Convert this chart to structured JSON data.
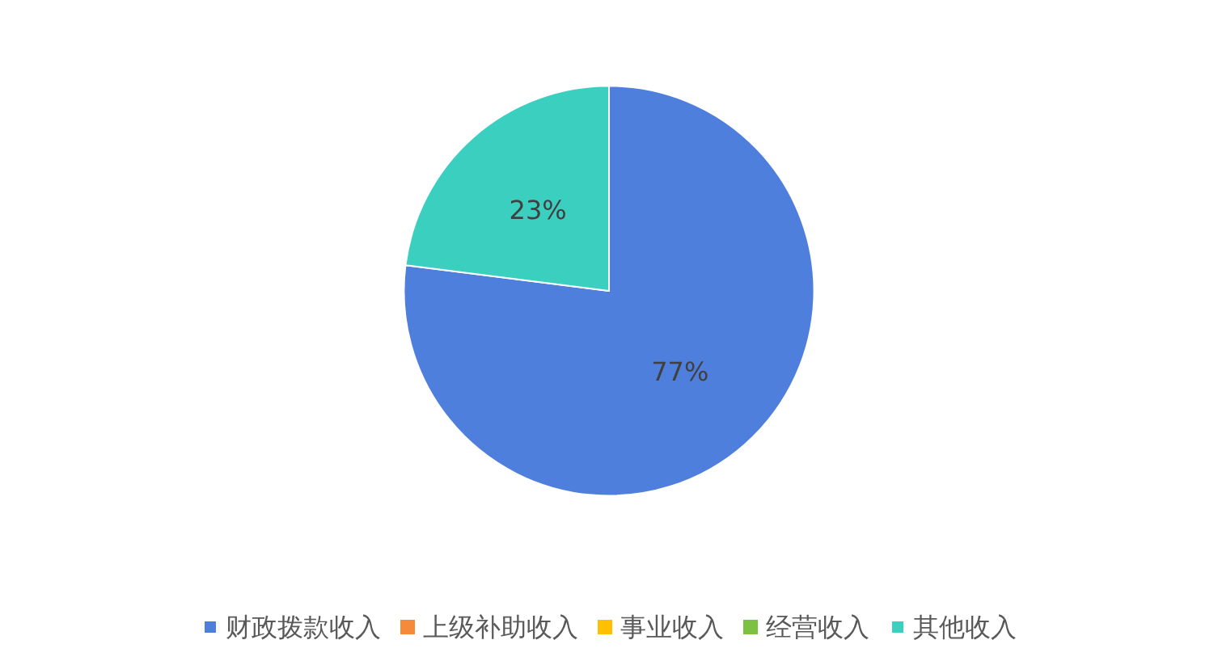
{
  "chart_data": {
    "type": "pie",
    "categories": [
      "财政拨款收入",
      "上级补助收入",
      "事业收入",
      "经营收入",
      "其他收入"
    ],
    "values": [
      77,
      0,
      0,
      0,
      23
    ],
    "colors": [
      "#4f7fdc",
      "#f58b3a",
      "#ffc000",
      "#7cc142",
      "#3bcfc0"
    ],
    "value_labels": [
      "77%",
      null,
      null,
      null,
      "23%"
    ],
    "legend": "bottom"
  }
}
